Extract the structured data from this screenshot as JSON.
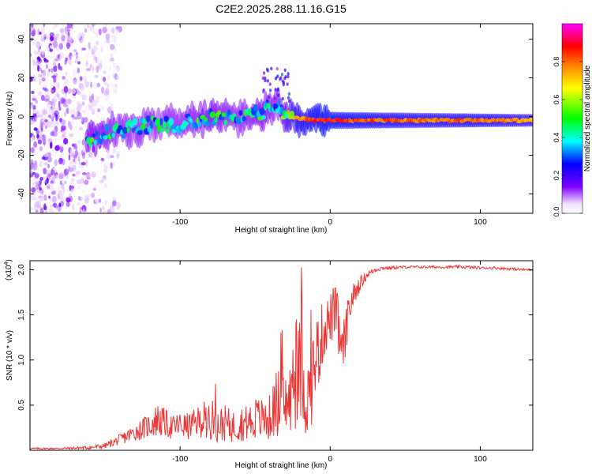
{
  "figure_title": "C2E2.2025.288.11.16.G15",
  "chart_data": [
    {
      "type": "heatmap",
      "name": "spectrogram",
      "title": "",
      "xlabel": "Height of straight line (km)",
      "ylabel": "Frequency (Hz)",
      "xlim": [
        -200,
        135
      ],
      "ylim": [
        -50,
        48
      ],
      "xticks": [
        -100,
        0,
        100
      ],
      "yticks": [
        -40,
        -20,
        0,
        20,
        40
      ],
      "xtick_labels": [
        "-100",
        "0",
        "100"
      ],
      "ytick_labels": [
        "-40",
        "-20",
        "0",
        "20",
        "40"
      ],
      "colorbar": {
        "label": "Normalized spectral amplitude",
        "range": [
          0,
          1
        ],
        "ticks": [
          0.0,
          0.2,
          0.4,
          0.6,
          0.8
        ],
        "tick_labels": [
          "0.0",
          "0.2",
          "0.4",
          "0.6",
          "0.8"
        ],
        "colormap": [
          "#ffffff",
          "#8000ff",
          "#0000ff",
          "#00ffff",
          "#00ff00",
          "#ffff00",
          "#ff8000",
          "#ff0000",
          "#ff00ff"
        ]
      },
      "ridge": {
        "x": [
          -160,
          -140,
          -120,
          -100,
          -80,
          -60,
          -45,
          -35,
          -28,
          -20,
          -10,
          0,
          20,
          50,
          80,
          110,
          135
        ],
        "frequency": [
          -11,
          -7,
          -4,
          -4,
          0,
          -1,
          2,
          6,
          0,
          -1,
          -2,
          -2,
          -2,
          -2,
          -2,
          -2,
          -2
        ],
        "amplitude": [
          0.5,
          0.45,
          0.45,
          0.45,
          0.5,
          0.45,
          0.5,
          0.45,
          0.7,
          0.85,
          0.9,
          0.95,
          0.9,
          0.85,
          0.85,
          0.85,
          0.75
        ]
      },
      "noise_region_x": [
        -200,
        -140
      ]
    },
    {
      "type": "line",
      "name": "snr",
      "title": "",
      "xlabel": "Height of straight line (km)",
      "ylabel": "SNR (10 * v/v)",
      "y_multiplier": "(x10",
      "y_multiplier_exp": "4",
      "y_multiplier_close": ")",
      "xlim": [
        -200,
        135
      ],
      "ylim": [
        0,
        2.1
      ],
      "xticks": [
        -100,
        0,
        100
      ],
      "yticks": [
        0.5,
        1.0,
        1.5,
        2.0
      ],
      "xtick_labels": [
        "-100",
        "0",
        "100"
      ],
      "ytick_labels": [
        "0.5",
        "1.0",
        "1.5",
        "2.0"
      ],
      "color": "#ee3333",
      "series": [
        {
          "name": "SNR",
          "x": [
            -200,
            -180,
            -160,
            -150,
            -140,
            -130,
            -120,
            -115,
            -110,
            -105,
            -100,
            -95,
            -90,
            -85,
            -80,
            -75,
            -70,
            -65,
            -60,
            -55,
            -50,
            -45,
            -40,
            -35,
            -30,
            -25,
            -22,
            -20,
            -18,
            -15,
            -12,
            -10,
            -8,
            -5,
            -2,
            0,
            3,
            5,
            8,
            10,
            12,
            15,
            20,
            25,
            30,
            35,
            40,
            50,
            60,
            70,
            80,
            90,
            100,
            110,
            120,
            130,
            135
          ],
          "y": [
            0.02,
            0.02,
            0.03,
            0.05,
            0.12,
            0.2,
            0.28,
            0.34,
            0.3,
            0.25,
            0.28,
            0.26,
            0.3,
            0.34,
            0.36,
            0.28,
            0.3,
            0.26,
            0.3,
            0.3,
            0.36,
            0.34,
            0.36,
            0.55,
            0.5,
            0.6,
            0.8,
            0.9,
            0.75,
            0.55,
            0.8,
            1.0,
            1.1,
            1.3,
            1.4,
            1.45,
            1.55,
            1.4,
            1.05,
            1.25,
            1.5,
            1.7,
            1.85,
            1.95,
            2.0,
            2.02,
            2.02,
            2.03,
            2.03,
            2.03,
            2.03,
            2.03,
            2.02,
            2.02,
            2.01,
            2.0,
            2.0
          ],
          "spread": [
            0.01,
            0.01,
            0.02,
            0.03,
            0.06,
            0.1,
            0.14,
            0.2,
            0.16,
            0.14,
            0.15,
            0.15,
            0.16,
            0.2,
            0.24,
            0.2,
            0.2,
            0.18,
            0.2,
            0.2,
            0.24,
            0.24,
            0.26,
            0.4,
            0.35,
            0.45,
            0.55,
            0.6,
            0.55,
            0.45,
            0.5,
            0.45,
            0.45,
            0.35,
            0.3,
            0.3,
            0.3,
            0.35,
            0.3,
            0.3,
            0.2,
            0.15,
            0.08,
            0.04,
            0.03,
            0.02,
            0.02,
            0.015,
            0.015,
            0.015,
            0.015,
            0.02,
            0.015,
            0.015,
            0.015,
            0.015,
            0.015
          ]
        }
      ]
    }
  ]
}
